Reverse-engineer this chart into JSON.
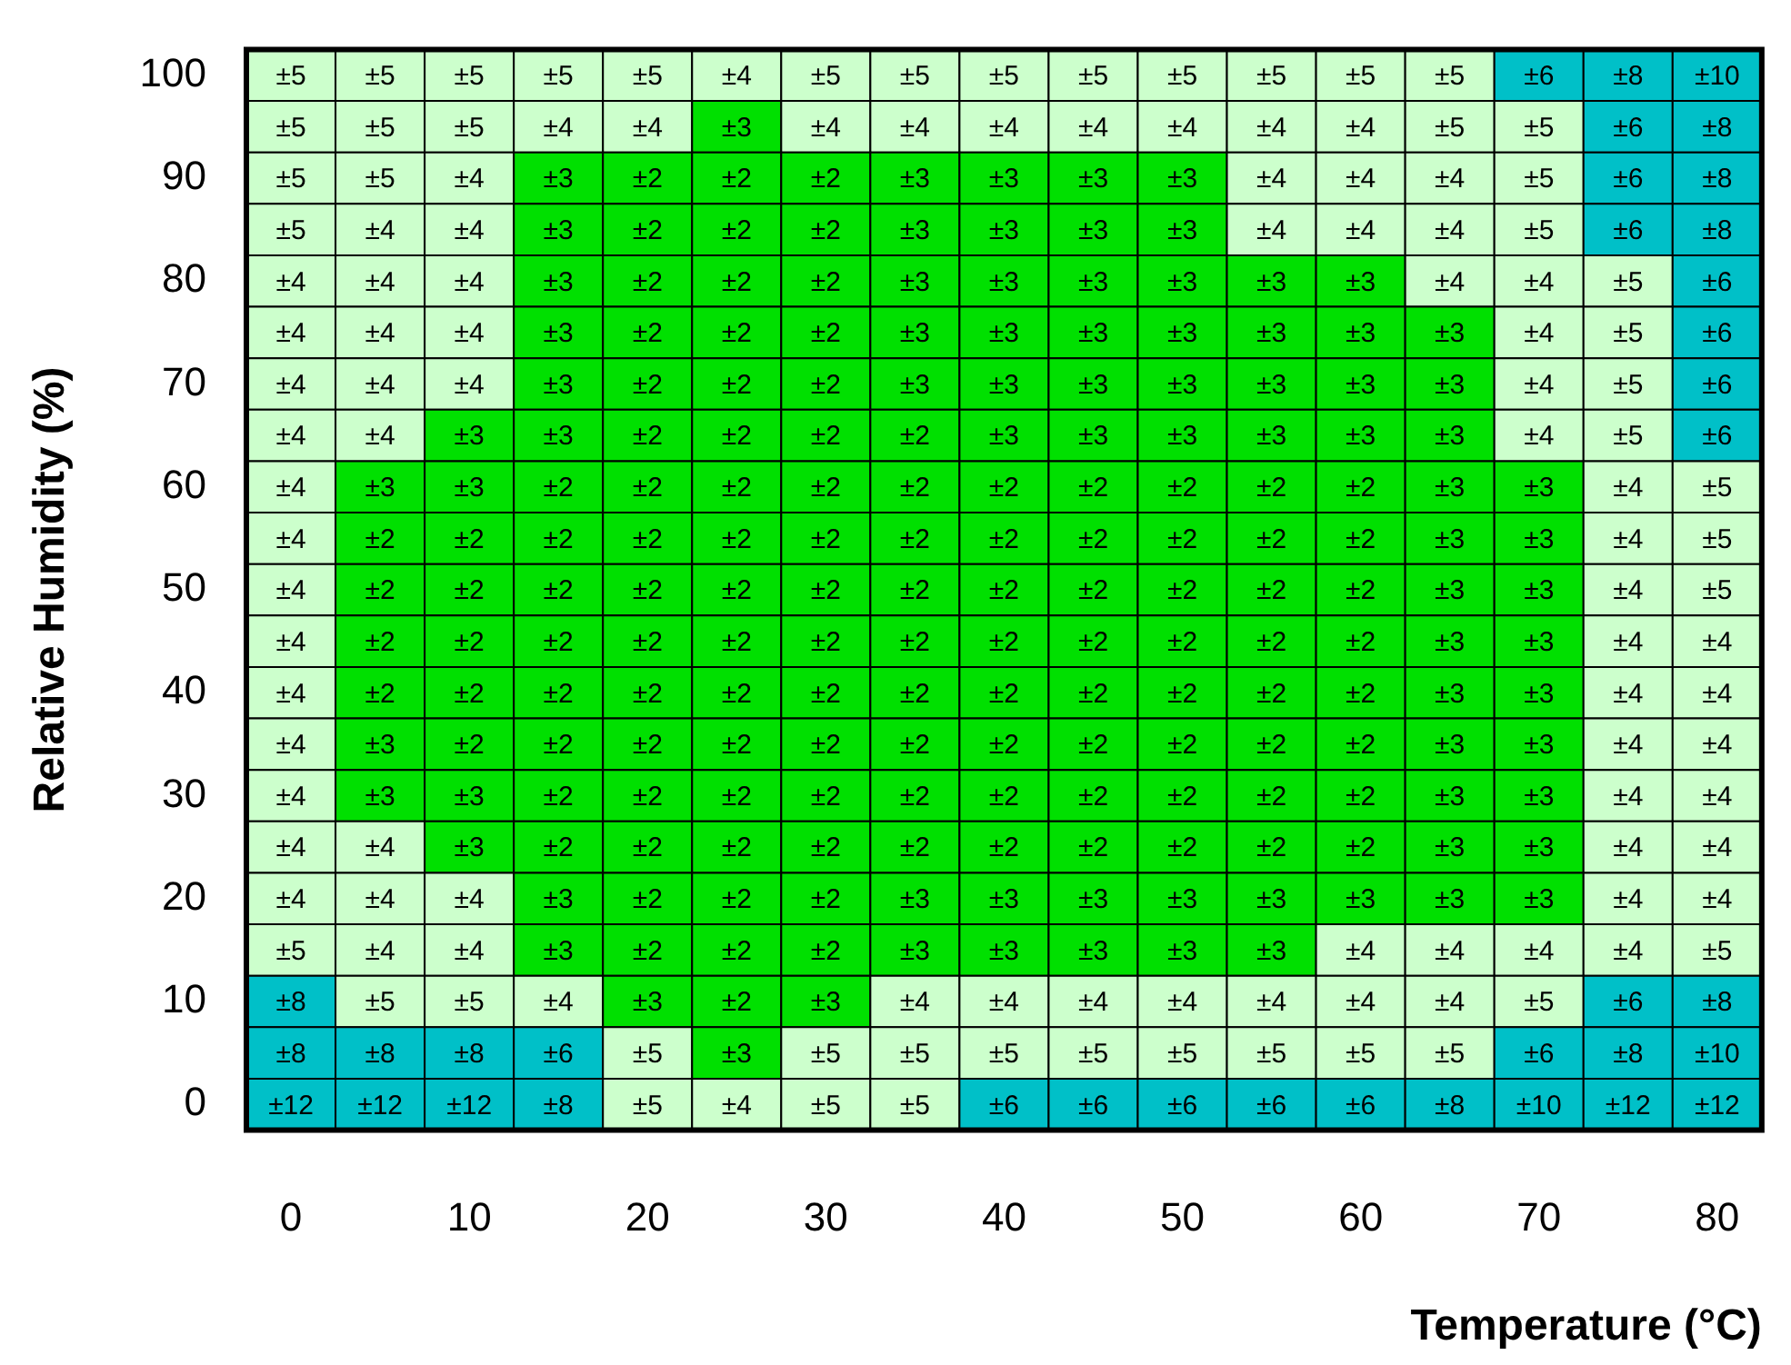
{
  "chart_data": {
    "type": "heatmap",
    "xlabel": "Temperature (°C)",
    "ylabel": "Relative Humidity (%)",
    "categories": [
      "0",
      null,
      "10",
      null,
      "20",
      null,
      "30",
      null,
      "40",
      null,
      "50",
      null,
      "60",
      null,
      "70",
      null,
      "80"
    ],
    "y_categories": [
      "100",
      null,
      "90",
      null,
      "80",
      null,
      "70",
      null,
      "60",
      null,
      "50",
      null,
      "40",
      null,
      "30",
      null,
      "20",
      null,
      "10",
      null,
      "0"
    ],
    "cells": [
      [
        5,
        5,
        5,
        5,
        5,
        4,
        5,
        5,
        5,
        5,
        5,
        5,
        5,
        5,
        6,
        8,
        10
      ],
      [
        5,
        5,
        5,
        4,
        4,
        3,
        4,
        4,
        4,
        4,
        4,
        4,
        4,
        5,
        5,
        6,
        8
      ],
      [
        5,
        5,
        4,
        3,
        2,
        2,
        2,
        3,
        3,
        3,
        3,
        4,
        4,
        4,
        5,
        6,
        8
      ],
      [
        5,
        4,
        4,
        3,
        2,
        2,
        2,
        3,
        3,
        3,
        3,
        4,
        4,
        4,
        5,
        6,
        8
      ],
      [
        4,
        4,
        4,
        3,
        2,
        2,
        2,
        3,
        3,
        3,
        3,
        3,
        3,
        4,
        4,
        5,
        6
      ],
      [
        4,
        4,
        4,
        3,
        2,
        2,
        2,
        3,
        3,
        3,
        3,
        3,
        3,
        3,
        4,
        5,
        6
      ],
      [
        4,
        4,
        4,
        3,
        2,
        2,
        2,
        3,
        3,
        3,
        3,
        3,
        3,
        3,
        4,
        5,
        6
      ],
      [
        4,
        4,
        3,
        3,
        2,
        2,
        2,
        2,
        3,
        3,
        3,
        3,
        3,
        3,
        4,
        5,
        6
      ],
      [
        4,
        3,
        3,
        2,
        2,
        2,
        2,
        2,
        2,
        2,
        2,
        2,
        2,
        3,
        3,
        4,
        5
      ],
      [
        4,
        2,
        2,
        2,
        2,
        2,
        2,
        2,
        2,
        2,
        2,
        2,
        2,
        3,
        3,
        4,
        5
      ],
      [
        4,
        2,
        2,
        2,
        2,
        2,
        2,
        2,
        2,
        2,
        2,
        2,
        2,
        3,
        3,
        4,
        5
      ],
      [
        4,
        2,
        2,
        2,
        2,
        2,
        2,
        2,
        2,
        2,
        2,
        2,
        2,
        3,
        3,
        4,
        4
      ],
      [
        4,
        2,
        2,
        2,
        2,
        2,
        2,
        2,
        2,
        2,
        2,
        2,
        2,
        3,
        3,
        4,
        4
      ],
      [
        4,
        3,
        2,
        2,
        2,
        2,
        2,
        2,
        2,
        2,
        2,
        2,
        2,
        3,
        3,
        4,
        4
      ],
      [
        4,
        3,
        3,
        2,
        2,
        2,
        2,
        2,
        2,
        2,
        2,
        2,
        2,
        3,
        3,
        4,
        4
      ],
      [
        4,
        4,
        3,
        2,
        2,
        2,
        2,
        2,
        2,
        2,
        2,
        2,
        2,
        3,
        3,
        4,
        4
      ],
      [
        4,
        4,
        4,
        3,
        2,
        2,
        2,
        3,
        3,
        3,
        3,
        3,
        3,
        3,
        3,
        4,
        4
      ],
      [
        5,
        4,
        4,
        3,
        2,
        2,
        2,
        3,
        3,
        3,
        3,
        3,
        4,
        4,
        4,
        4,
        5
      ],
      [
        8,
        5,
        5,
        4,
        3,
        2,
        3,
        4,
        4,
        4,
        4,
        4,
        4,
        4,
        5,
        6,
        8
      ],
      [
        8,
        8,
        8,
        6,
        5,
        3,
        5,
        5,
        5,
        5,
        5,
        5,
        5,
        5,
        6,
        8,
        10
      ],
      [
        12,
        12,
        12,
        8,
        5,
        4,
        5,
        5,
        6,
        6,
        6,
        6,
        6,
        8,
        10,
        12,
        12
      ]
    ],
    "cell_labels": [
      [
        "±5",
        "±5",
        "±5",
        "±5",
        "±5",
        "±4",
        "±5",
        "±5",
        "±5",
        "±5",
        "±5",
        "±5",
        "±5",
        "±5",
        "±6",
        "±8",
        "±10"
      ],
      [
        "±5",
        "±5",
        "±5",
        "±4",
        "±4",
        "±3",
        "±4",
        "±4",
        "±4",
        "±4",
        "±4",
        "±4",
        "±4",
        "±5",
        "±5",
        "±6",
        "±8"
      ],
      [
        "±5",
        "±5",
        "±4",
        "±3",
        "±2",
        "±2",
        "±2",
        "±3",
        "±3",
        "±3",
        "±3",
        "±4",
        "±4",
        "±4",
        "±5",
        "±6",
        "±8"
      ],
      [
        "±5",
        "±4",
        "±4",
        "±3",
        "±2",
        "±2",
        "±2",
        "±3",
        "±3",
        "±3",
        "±3",
        "±4",
        "±4",
        "±4",
        "±5",
        "±6",
        "±8"
      ],
      [
        "±4",
        "±4",
        "±4",
        "±3",
        "±2",
        "±2",
        "±2",
        "±3",
        "±3",
        "±3",
        "±3",
        "±3",
        "±3",
        "±4",
        "±4",
        "±5",
        "±6"
      ],
      [
        "±4",
        "±4",
        "±4",
        "±3",
        "±2",
        "±2",
        "±2",
        "±3",
        "±3",
        "±3",
        "±3",
        "±3",
        "±3",
        "±3",
        "±4",
        "±5",
        "±6"
      ],
      [
        "±4",
        "±4",
        "±4",
        "±3",
        "±2",
        "±2",
        "±2",
        "±3",
        "±3",
        "±3",
        "±3",
        "±3",
        "±3",
        "±3",
        "±4",
        "±5",
        "±6"
      ],
      [
        "±4",
        "±4",
        "±3",
        "±3",
        "±2",
        "±2",
        "±2",
        "±2",
        "±3",
        "±3",
        "±3",
        "±3",
        "±3",
        "±3",
        "±4",
        "±5",
        "±6"
      ],
      [
        "±4",
        "±3",
        "±3",
        "±2",
        "±2",
        "±2",
        "±2",
        "±2",
        "±2",
        "±2",
        "±2",
        "±2",
        "±2",
        "±3",
        "±3",
        "±4",
        "±5"
      ],
      [
        "±4",
        "±2",
        "±2",
        "±2",
        "±2",
        "±2",
        "±2",
        "±2",
        "±2",
        "±2",
        "±2",
        "±2",
        "±2",
        "±3",
        "±3",
        "±4",
        "±5"
      ],
      [
        "±4",
        "±2",
        "±2",
        "±2",
        "±2",
        "±2",
        "±2",
        "±2",
        "±2",
        "±2",
        "±2",
        "±2",
        "±2",
        "±3",
        "±3",
        "±4",
        "±5"
      ],
      [
        "±4",
        "±2",
        "±2",
        "±2",
        "±2",
        "±2",
        "±2",
        "±2",
        "±2",
        "±2",
        "±2",
        "±2",
        "±2",
        "±3",
        "±3",
        "±4",
        "±4"
      ],
      [
        "±4",
        "±2",
        "±2",
        "±2",
        "±2",
        "±2",
        "±2",
        "±2",
        "±2",
        "±2",
        "±2",
        "±2",
        "±2",
        "±3",
        "±3",
        "±4",
        "±4"
      ],
      [
        "±4",
        "±3",
        "±2",
        "±2",
        "±2",
        "±2",
        "±2",
        "±2",
        "±2",
        "±2",
        "±2",
        "±2",
        "±2",
        "±3",
        "±3",
        "±4",
        "±4"
      ],
      [
        "±4",
        "±3",
        "±3",
        "±2",
        "±2",
        "±2",
        "±2",
        "±2",
        "±2",
        "±2",
        "±2",
        "±2",
        "±2",
        "±3",
        "±3",
        "±4",
        "±4"
      ],
      [
        "±4",
        "±4",
        "±3",
        "±2",
        "±2",
        "±2",
        "±2",
        "±2",
        "±2",
        "±2",
        "±2",
        "±2",
        "±2",
        "±3",
        "±3",
        "±4",
        "±4"
      ],
      [
        "±4",
        "±4",
        "±4",
        "±3",
        "±2",
        "±2",
        "±2",
        "±3",
        "±3",
        "±3",
        "±3",
        "±3",
        "±3",
        "±3",
        "±3",
        "±4",
        "±4"
      ],
      [
        "±5",
        "±4",
        "±4",
        "±3",
        "±2",
        "±2",
        "±2",
        "±3",
        "±3",
        "±3",
        "±3",
        "±3",
        "±4",
        "±4",
        "±4",
        "±4",
        "±5"
      ],
      [
        "±8",
        "±5",
        "±5",
        "±4",
        "±3",
        "±2",
        "±3",
        "±4",
        "±4",
        "±4",
        "±4",
        "±4",
        "±4",
        "±4",
        "±5",
        "±6",
        "±8"
      ],
      [
        "±8",
        "±8",
        "±8",
        "±6",
        "±5",
        "±3",
        "±5",
        "±5",
        "±5",
        "±5",
        "±5",
        "±5",
        "±5",
        "±5",
        "±6",
        "±8",
        "±10"
      ],
      [
        "±12",
        "±12",
        "±12",
        "±8",
        "±5",
        "±4",
        "±5",
        "±5",
        "±6",
        "±6",
        "±6",
        "±6",
        "±6",
        "±8",
        "±10",
        "±12",
        "±12"
      ]
    ],
    "colors": [
      "#00e000",
      "#00e000",
      "#ccffcc",
      "#ccffcc",
      "#00c0c8",
      "#00c0c8",
      "#00c0c8",
      "#00c0c8"
    ]
  }
}
